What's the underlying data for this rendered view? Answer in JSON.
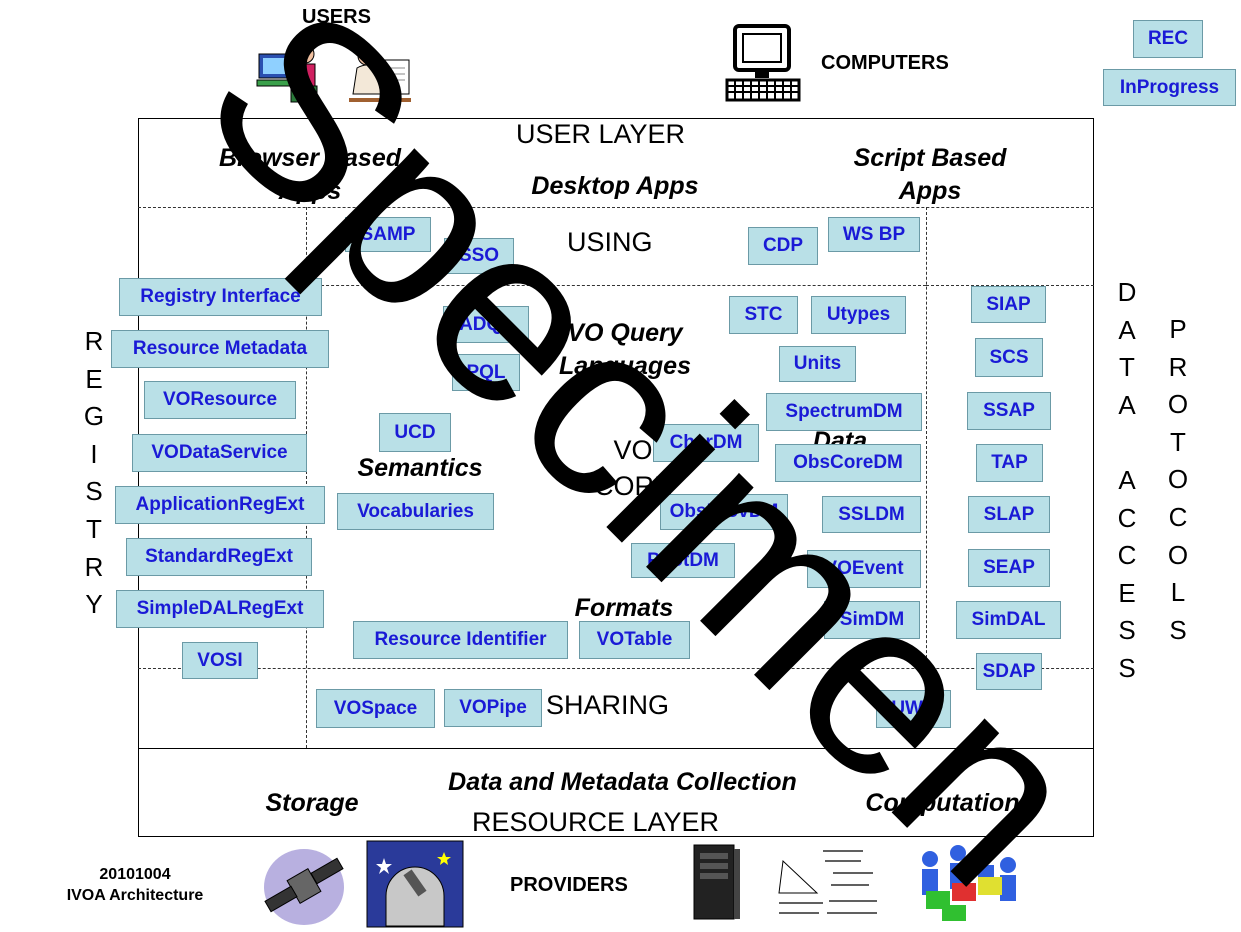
{
  "top": {
    "users": "USERS",
    "computers": "COMPUTERS",
    "legend_rec": "REC",
    "legend_inprogress": "InProgress"
  },
  "layers": {
    "user_layer": "USER LAYER",
    "using": "USING",
    "vo_core_line1": "VO",
    "vo_core_line2": "CORE",
    "sharing": "SHARING",
    "resource_layer": "RESOURCE LAYER"
  },
  "areas": {
    "browser_apps_1": "Browser Based",
    "browser_apps_2": "Apps",
    "desktop_apps": "Desktop Apps",
    "script_apps_1": "Script Based",
    "script_apps_2": "Apps",
    "vo_query_1": "VO Query",
    "vo_query_2": "Languages",
    "semantics": "Semantics",
    "data_models_1": "Data",
    "data_models_2": "Models",
    "formats": "Formats",
    "data_collection": "Data and Metadata Collection",
    "storage": "Storage",
    "computation": "Computation"
  },
  "side": {
    "registry": [
      "R",
      "E",
      "G",
      "I",
      "S",
      "T",
      "R",
      "Y"
    ],
    "data": [
      "D",
      "A",
      "T",
      "A"
    ],
    "access": [
      "A",
      "C",
      "C",
      "E",
      "S",
      "S"
    ],
    "protocols": [
      "P",
      "R",
      "O",
      "T",
      "O",
      "C",
      "O",
      "L",
      "S"
    ]
  },
  "standards": {
    "samp": "SAMP",
    "sso": "SSO",
    "cdp": "CDP",
    "wsbp": "WS BP",
    "registry_interface": "Registry Interface",
    "resource_metadata": "Resource Metadata",
    "voresource": "VOResource",
    "vodataservice": "VODataService",
    "applicationregext": "ApplicationRegExt",
    "standardregext": "StandardRegExt",
    "simpledalregext": "SimpleDALRegExt",
    "vosi": "VOSI",
    "adql": "ADQL",
    "pql": "PQL",
    "ucd": "UCD",
    "vocabularies": "Vocabularies",
    "stc": "STC",
    "utypes": "Utypes",
    "units": "Units",
    "spectrumdm": "SpectrumDM",
    "chardm": "CharDM",
    "obscoredm": "ObsCoreDM",
    "obsprovdm": "ObsProvDM",
    "ssldm": "SSLDM",
    "photdm": "PhotDM",
    "vo_event": "VOEvent",
    "simdm": "SimDM",
    "resource_identifier": "Resource Identifier",
    "votable": "VOTable",
    "siap": "SIAP",
    "scs": "SCS",
    "ssap": "SSAP",
    "tap": "TAP",
    "slap": "SLAP",
    "seap": "SEAP",
    "simdal": "SimDAL",
    "sdap": "SDAP",
    "vospace": "VOSpace",
    "vopipe": "VOPipe",
    "ws": "UWS"
  },
  "footer": {
    "date": "20101004",
    "arch": "IVOA Architecture",
    "providers": "PROVIDERS"
  },
  "watermark": "Specimen",
  "colors": {
    "standard_fill": "#b9e0e7",
    "standard_text": "#1a1ad6"
  }
}
